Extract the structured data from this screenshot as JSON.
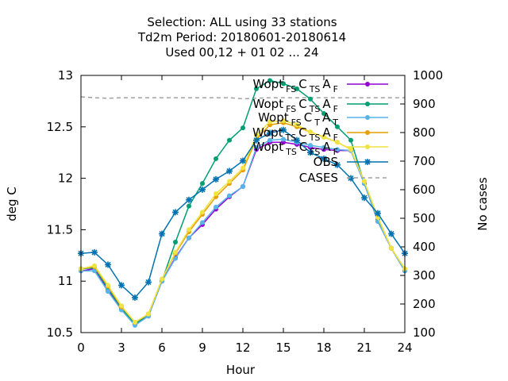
{
  "chart_data": {
    "type": "line",
    "title_lines": [
      "Selection: ALL using    33 stations",
      "Td2m   Period: 20180601-20180614",
      "Used  00,12  + 01 02 ... 24"
    ],
    "xlabel": "Hour",
    "ylabel": "deg C",
    "y2label": "No cases",
    "xlim": [
      0,
      24
    ],
    "ylim": [
      10.5,
      13
    ],
    "y2lim": [
      100,
      1000
    ],
    "xticks": [
      "0",
      "3",
      "6",
      "9",
      "12",
      "15",
      "18",
      "21",
      "24"
    ],
    "yticks": [
      "10.5",
      "11",
      "11.5",
      "12",
      "12.5",
      "13"
    ],
    "y2ticks": [
      "100",
      "200",
      "300",
      "400",
      "500",
      "600",
      "700",
      "800",
      "900",
      "1000"
    ],
    "grid": false,
    "legend_position": "top-right",
    "x": [
      0,
      1,
      2,
      3,
      4,
      5,
      6,
      7,
      8,
      9,
      10,
      11,
      12,
      13,
      14,
      15,
      16,
      17,
      18,
      19,
      20,
      21,
      22,
      23,
      24
    ],
    "series": [
      {
        "legend": {
          "base": "Wopt",
          "sub1": "FS",
          "mid": "C",
          "sub2": "TS",
          "end": "A",
          "sub3": "F"
        },
        "color": "#9400d3",
        "marker": "circle",
        "values": [
          11.1,
          11.12,
          10.92,
          10.73,
          10.58,
          10.66,
          11.0,
          11.23,
          11.42,
          11.55,
          11.7,
          11.82,
          11.92,
          12.28,
          12.35,
          12.35,
          12.33,
          12.3,
          12.28,
          12.27,
          12.27,
          11.95,
          11.58,
          11.32,
          11.1
        ]
      },
      {
        "legend": {
          "base": "Wopt",
          "sub1": "FS",
          "mid": "C",
          "sub2": "TS",
          "end": "A",
          "sub3": "F"
        },
        "color": "#009e73",
        "marker": "circle",
        "values": [
          11.12,
          11.13,
          10.93,
          10.74,
          10.58,
          10.68,
          11.0,
          11.38,
          11.73,
          11.95,
          12.19,
          12.37,
          12.49,
          12.87,
          12.95,
          12.92,
          12.87,
          12.77,
          12.63,
          12.5,
          12.37,
          11.95,
          11.6,
          11.32,
          11.1
        ]
      },
      {
        "legend": {
          "base": "Wopt",
          "sub1": "FS",
          "mid": "C",
          "sub2": "T",
          "end": "A",
          "sub3": "T"
        },
        "color": "#56b4e9",
        "marker": "circle",
        "values": [
          11.1,
          11.1,
          10.9,
          10.72,
          10.57,
          10.66,
          11.0,
          11.22,
          11.42,
          11.57,
          11.72,
          11.83,
          11.92,
          12.3,
          12.37,
          12.38,
          12.35,
          12.32,
          12.3,
          12.28,
          12.27,
          11.95,
          11.58,
          11.32,
          11.1
        ]
      },
      {
        "legend": {
          "base": "Wopt",
          "sub1": "TS",
          "mid": "C",
          "sub2": "TS",
          "end": "A",
          "sub3": "F"
        },
        "color": "#e69f00",
        "marker": "circle",
        "values": [
          11.12,
          11.14,
          10.95,
          10.75,
          10.6,
          10.68,
          11.02,
          11.27,
          11.48,
          11.65,
          11.82,
          11.95,
          12.08,
          12.38,
          12.52,
          12.54,
          12.5,
          12.45,
          12.4,
          12.35,
          12.28,
          11.97,
          11.62,
          11.32,
          11.12
        ]
      },
      {
        "legend": {
          "base": "Wopt",
          "sub1": "TS",
          "mid": "C",
          "sub2": "FS",
          "end": "A",
          "sub3": "F"
        },
        "color": "#f0e442",
        "marker": "circle",
        "values": [
          11.12,
          11.15,
          10.96,
          10.76,
          10.6,
          10.68,
          11.02,
          11.28,
          11.5,
          11.67,
          11.85,
          11.97,
          12.1,
          12.42,
          12.55,
          12.56,
          12.52,
          12.45,
          12.4,
          12.35,
          12.28,
          11.97,
          11.62,
          11.32,
          11.12
        ]
      },
      {
        "legend": {
          "plain": "OBS"
        },
        "color": "#0072b2",
        "marker": "star",
        "values": [
          11.27,
          11.28,
          11.16,
          10.96,
          10.84,
          10.99,
          11.46,
          11.67,
          11.79,
          11.89,
          11.99,
          12.07,
          12.17,
          12.37,
          12.44,
          12.47,
          12.37,
          12.25,
          12.19,
          12.13,
          12.0,
          11.81,
          11.66,
          11.46,
          11.27
        ]
      }
    ],
    "cases": {
      "legend": "CASES",
      "color": "#a0a0a0",
      "axis": "y2",
      "values": [
        925,
        922,
        920,
        922,
        922,
        922,
        922,
        922,
        922,
        922,
        922,
        922,
        918,
        920,
        922,
        922,
        922,
        922,
        922,
        922,
        922,
        922,
        922,
        922,
        922
      ]
    }
  }
}
